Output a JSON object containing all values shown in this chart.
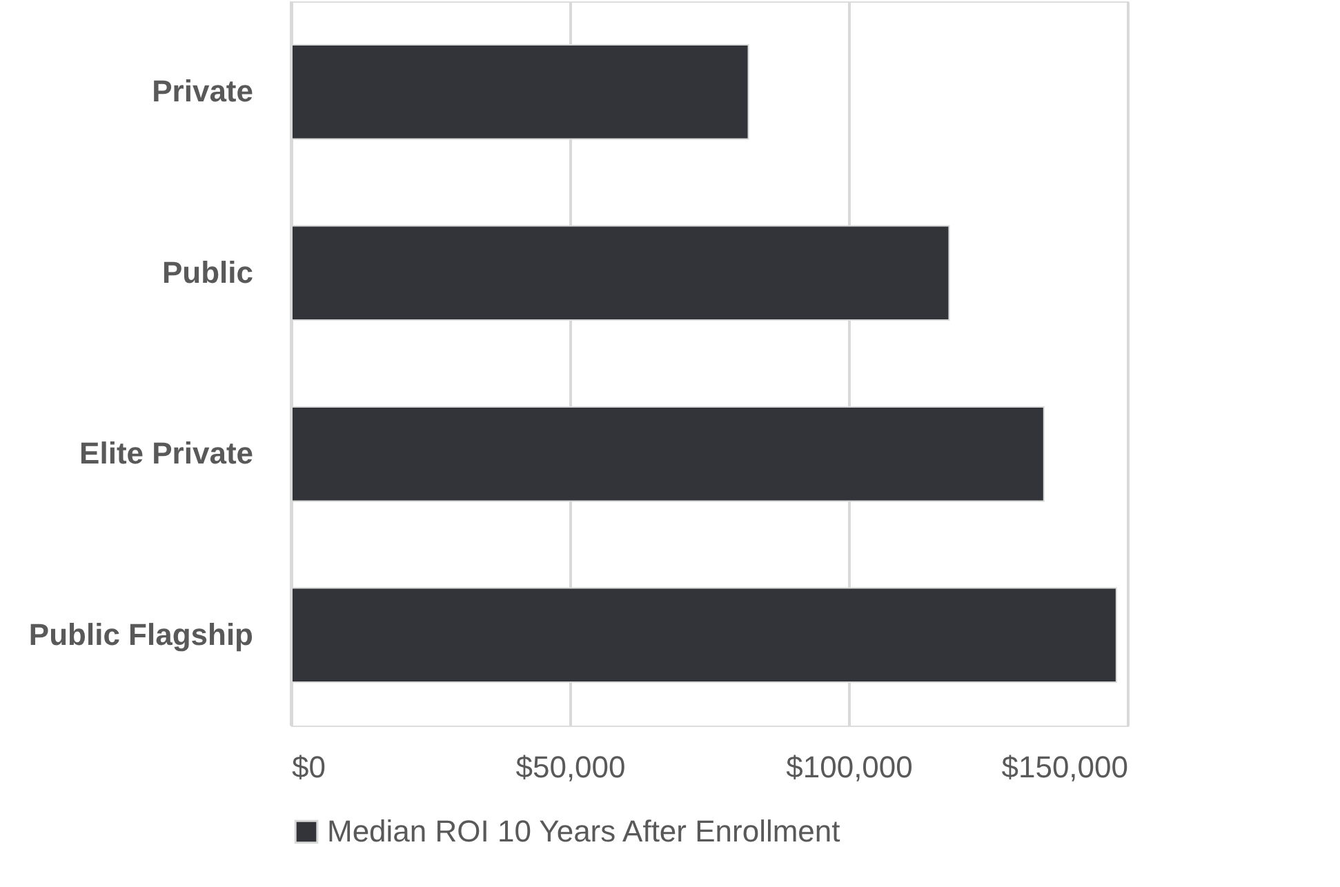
{
  "chart_data": {
    "type": "bar",
    "orientation": "horizontal",
    "categories": [
      "Private",
      "Public",
      "Elite Private",
      "Public Flagship"
    ],
    "series": [
      {
        "name": "Median ROI 10 Years After Enrollment",
        "color": "#333439",
        "values": [
          82000,
          118000,
          135000,
          148000
        ]
      }
    ],
    "xlim": [
      0,
      150000
    ],
    "xticks": [
      {
        "value": 0,
        "label": "$0"
      },
      {
        "value": 50000,
        "label": "$50,000"
      },
      {
        "value": 100000,
        "label": "$100,000"
      },
      {
        "value": 150000,
        "label": "$150,000"
      }
    ],
    "grid": "x",
    "legend": "bottom"
  }
}
